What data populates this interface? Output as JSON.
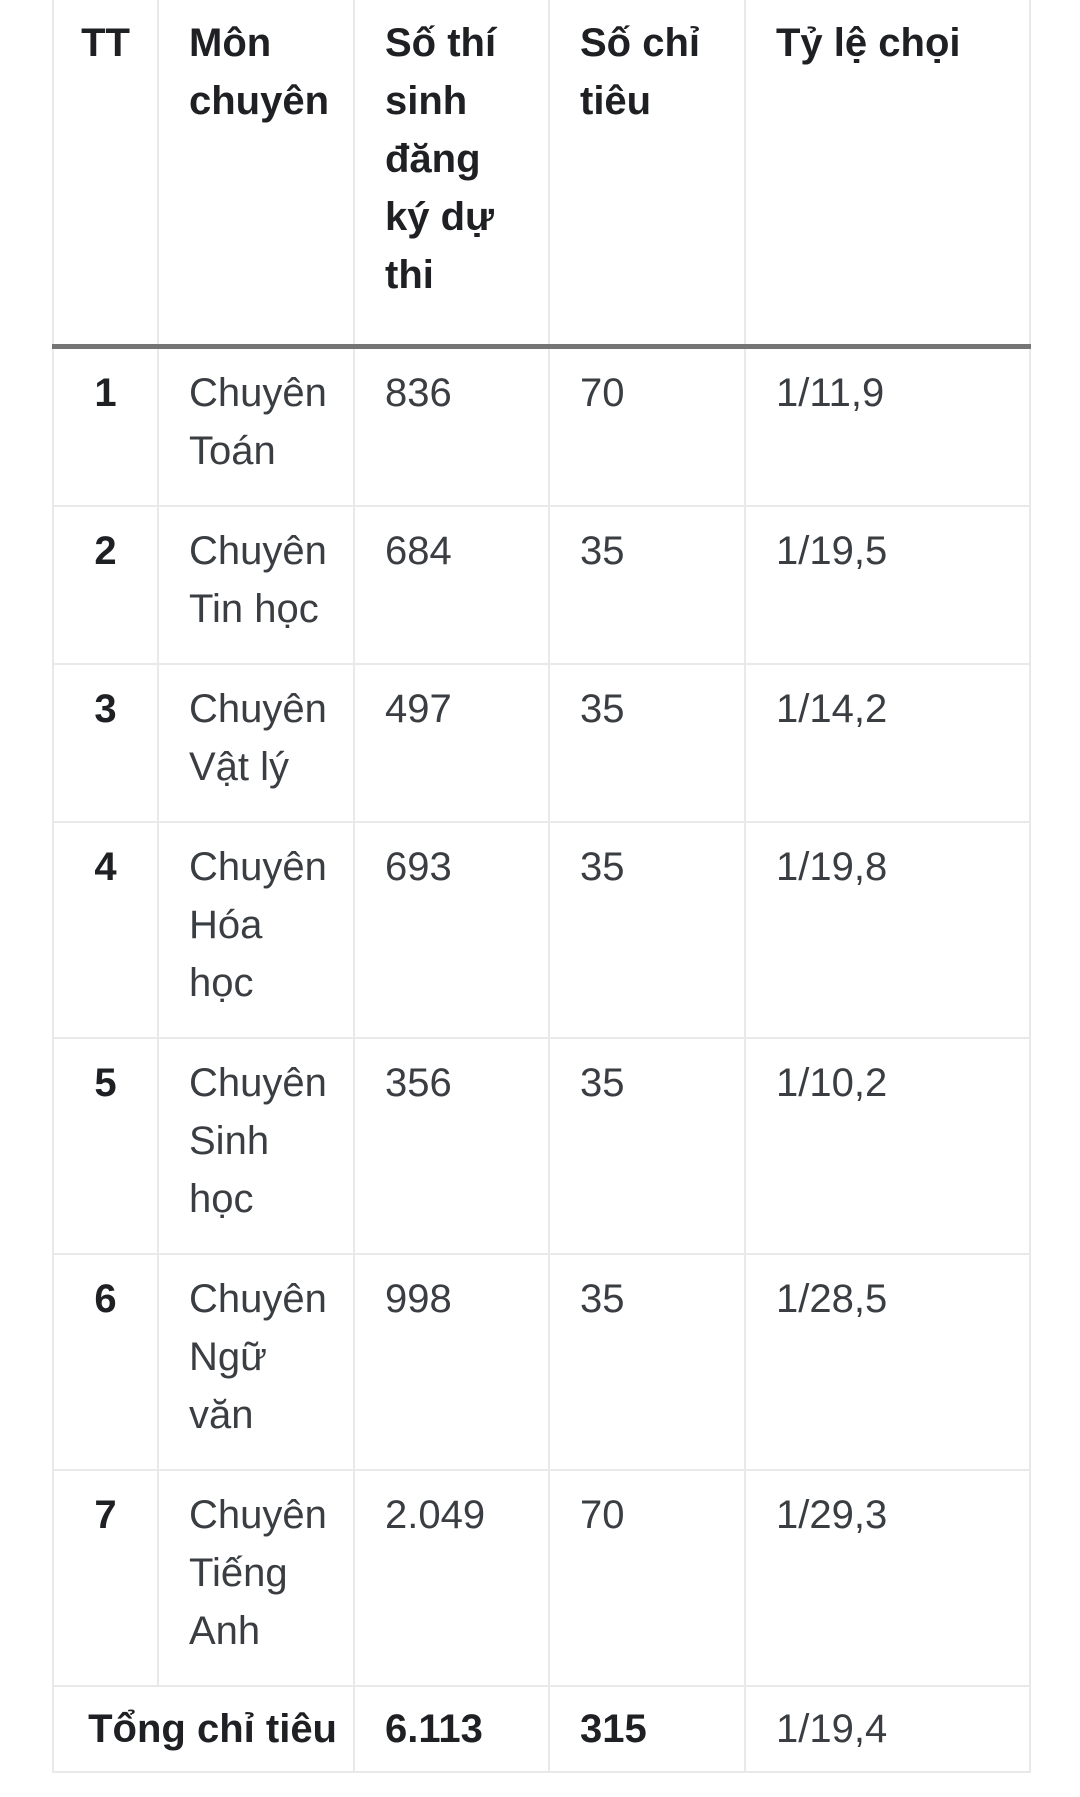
{
  "colors": {
    "background": "#ffffff",
    "grid_border": "#e9e9e9",
    "header_separator": "#757575",
    "text_primary": "#1f2023",
    "text_secondary": "#3a3e42"
  },
  "table": {
    "columns": [
      {
        "key": "tt",
        "label": "TT"
      },
      {
        "key": "subject",
        "label": "Môn\nchuyên"
      },
      {
        "key": "candidates",
        "label": "Số thí\nsinh\nđăng\nký dự\nthi"
      },
      {
        "key": "quota",
        "label": "Số chỉ\ntiêu"
      },
      {
        "key": "ratio",
        "label": "Tỷ lệ chọi"
      }
    ],
    "rows": [
      {
        "tt": "1",
        "subject": "Chuyên\nToán",
        "candidates": "836",
        "quota": "70",
        "ratio": "1/11,9"
      },
      {
        "tt": "2",
        "subject": "Chuyên\nTin học",
        "candidates": "684",
        "quota": "35",
        "ratio": "1/19,5"
      },
      {
        "tt": "3",
        "subject": "Chuyên\nVật lý",
        "candidates": "497",
        "quota": "35",
        "ratio": "1/14,2"
      },
      {
        "tt": "4",
        "subject": "Chuyên\nHóa\nhọc",
        "candidates": "693",
        "quota": "35",
        "ratio": "1/19,8"
      },
      {
        "tt": "5",
        "subject": "Chuyên\nSinh\nhọc",
        "candidates": "356",
        "quota": "35",
        "ratio": "1/10,2"
      },
      {
        "tt": "6",
        "subject": "Chuyên\nNgữ\nvăn",
        "candidates": "998",
        "quota": "35",
        "ratio": "1/28,5"
      },
      {
        "tt": "7",
        "subject": "Chuyên\nTiếng\nAnh",
        "candidates": "2.049",
        "quota": "70",
        "ratio": "1/29,3"
      }
    ],
    "total": {
      "label": "Tổng chỉ tiêu",
      "candidates": "6.113",
      "quota": "315",
      "ratio": "1/19,4"
    }
  }
}
